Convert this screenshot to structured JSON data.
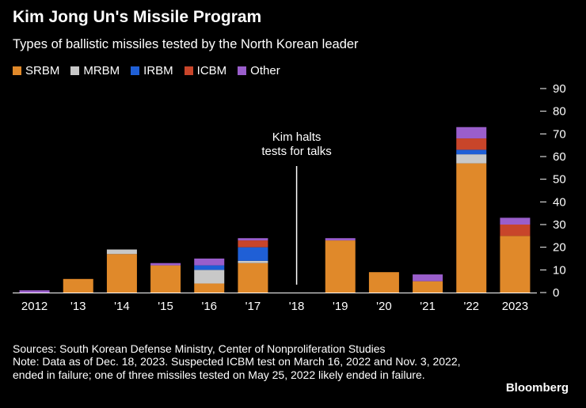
{
  "header": {
    "title": "Kim Jong Un's Missile Program",
    "subtitle": "Types of ballistic missiles tested by the North Korean leader"
  },
  "colors": {
    "SRBM": "#e0892a",
    "MRBM": "#c8c8c8",
    "IRBM": "#1f5fd6",
    "ICBM": "#c8452a",
    "Other": "#9a5ecb"
  },
  "chart_data": {
    "type": "bar",
    "stacked": true,
    "categories": [
      "2012",
      "'13",
      "'14",
      "'15",
      "'16",
      "'17",
      "'18",
      "'19",
      "'20",
      "'21",
      "'22",
      "2023"
    ],
    "series": [
      {
        "name": "SRBM",
        "values": [
          0,
          6,
          17,
          12,
          4,
          13,
          0,
          23,
          9,
          5,
          57,
          25
        ]
      },
      {
        "name": "MRBM",
        "values": [
          0,
          0,
          2,
          0,
          6,
          1,
          0,
          0,
          0,
          0,
          4,
          0
        ]
      },
      {
        "name": "IRBM",
        "values": [
          0,
          0,
          0,
          0,
          2,
          6,
          0,
          0,
          0,
          0,
          2,
          0
        ]
      },
      {
        "name": "ICBM",
        "values": [
          0,
          0,
          0,
          0,
          0,
          3,
          0,
          0,
          0,
          0,
          5,
          5
        ]
      },
      {
        "name": "Other",
        "values": [
          1,
          0,
          0,
          1,
          3,
          1,
          0,
          1,
          0,
          3,
          5,
          3
        ]
      }
    ],
    "yticks": [
      0,
      10,
      20,
      30,
      40,
      50,
      60,
      70,
      80,
      90
    ],
    "ylim": [
      0,
      90
    ],
    "y_axis_side": "right",
    "legend_position": "top-left",
    "annotation": {
      "category": "'18",
      "lines": [
        "Kim halts",
        "tests for talks"
      ]
    }
  },
  "footer": {
    "sources": "Sources: South Korean Defense Ministry, Center of Nonproliferation Studies",
    "note": "Note: Data as of Dec. 18, 2023. Suspected ICBM test on March 16, 2022 and Nov. 3, 2022, ended in failure; one of three missiles tested on May 25, 2022 likely ended in failure.",
    "brand": "Bloomberg"
  }
}
